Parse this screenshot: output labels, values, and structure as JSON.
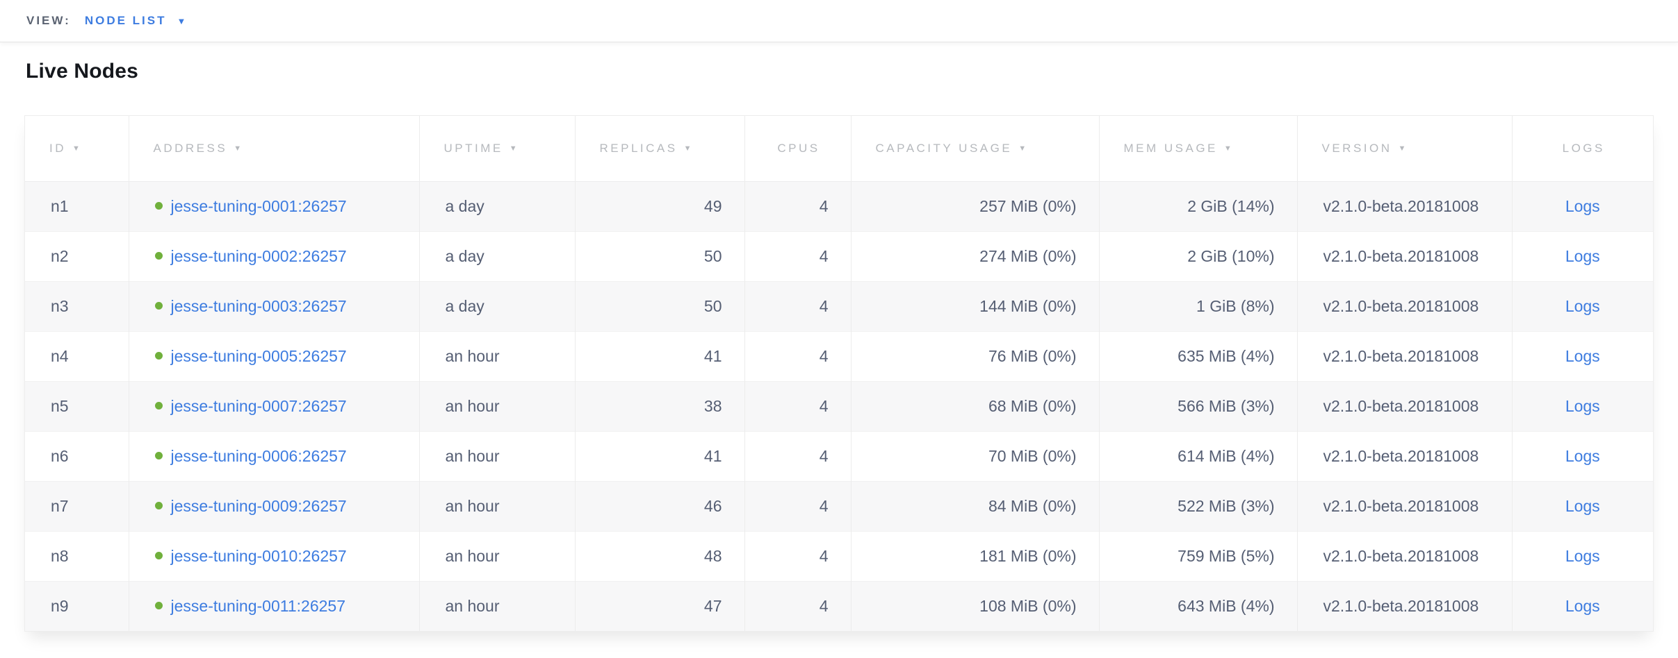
{
  "view_bar": {
    "label": "VIEW:",
    "selected_view": "NODE LIST"
  },
  "page_title": "Live Nodes",
  "icons": {
    "sort_descending": "▼",
    "dropdown_caret": "▼"
  },
  "colors": {
    "accent_blue": "#3d7ce0",
    "link_blue": "#3d7ce0",
    "healthy_green": "#70b03c",
    "header_text_gray": "#b6b9bd",
    "body_text": "#555e73",
    "row_stripe": "#f7f7f8"
  },
  "table": {
    "columns": [
      {
        "label": "ID",
        "sortable": true
      },
      {
        "label": "ADDRESS",
        "sortable": true
      },
      {
        "label": "UPTIME",
        "sortable": true
      },
      {
        "label": "REPLICAS",
        "sortable": true
      },
      {
        "label": "CPUS",
        "sortable": false
      },
      {
        "label": "CAPACITY USAGE",
        "sortable": true
      },
      {
        "label": "MEM USAGE",
        "sortable": true
      },
      {
        "label": "VERSION",
        "sortable": true
      },
      {
        "label": "LOGS",
        "sortable": false
      }
    ],
    "rows": [
      {
        "id": "n1",
        "status": "healthy",
        "address": "jesse-tuning-0001:26257",
        "uptime": "a day",
        "replicas": "49",
        "cpus": "4",
        "capacity_usage": "257 MiB (0%)",
        "mem_usage": "2 GiB (14%)",
        "version": "v2.1.0-beta.20181008",
        "logs_label": "Logs"
      },
      {
        "id": "n2",
        "status": "healthy",
        "address": "jesse-tuning-0002:26257",
        "uptime": "a day",
        "replicas": "50",
        "cpus": "4",
        "capacity_usage": "274 MiB (0%)",
        "mem_usage": "2 GiB (10%)",
        "version": "v2.1.0-beta.20181008",
        "logs_label": "Logs"
      },
      {
        "id": "n3",
        "status": "healthy",
        "address": "jesse-tuning-0003:26257",
        "uptime": "a day",
        "replicas": "50",
        "cpus": "4",
        "capacity_usage": "144 MiB (0%)",
        "mem_usage": "1 GiB (8%)",
        "version": "v2.1.0-beta.20181008",
        "logs_label": "Logs"
      },
      {
        "id": "n4",
        "status": "healthy",
        "address": "jesse-tuning-0005:26257",
        "uptime": "an hour",
        "replicas": "41",
        "cpus": "4",
        "capacity_usage": "76 MiB (0%)",
        "mem_usage": "635 MiB (4%)",
        "version": "v2.1.0-beta.20181008",
        "logs_label": "Logs"
      },
      {
        "id": "n5",
        "status": "healthy",
        "address": "jesse-tuning-0007:26257",
        "uptime": "an hour",
        "replicas": "38",
        "cpus": "4",
        "capacity_usage": "68 MiB (0%)",
        "mem_usage": "566 MiB (3%)",
        "version": "v2.1.0-beta.20181008",
        "logs_label": "Logs"
      },
      {
        "id": "n6",
        "status": "healthy",
        "address": "jesse-tuning-0006:26257",
        "uptime": "an hour",
        "replicas": "41",
        "cpus": "4",
        "capacity_usage": "70 MiB (0%)",
        "mem_usage": "614 MiB (4%)",
        "version": "v2.1.0-beta.20181008",
        "logs_label": "Logs"
      },
      {
        "id": "n7",
        "status": "healthy",
        "address": "jesse-tuning-0009:26257",
        "uptime": "an hour",
        "replicas": "46",
        "cpus": "4",
        "capacity_usage": "84 MiB (0%)",
        "mem_usage": "522 MiB (3%)",
        "version": "v2.1.0-beta.20181008",
        "logs_label": "Logs"
      },
      {
        "id": "n8",
        "status": "healthy",
        "address": "jesse-tuning-0010:26257",
        "uptime": "an hour",
        "replicas": "48",
        "cpus": "4",
        "capacity_usage": "181 MiB (0%)",
        "mem_usage": "759 MiB (5%)",
        "version": "v2.1.0-beta.20181008",
        "logs_label": "Logs"
      },
      {
        "id": "n9",
        "status": "healthy",
        "address": "jesse-tuning-0011:26257",
        "uptime": "an hour",
        "replicas": "47",
        "cpus": "4",
        "capacity_usage": "108 MiB (0%)",
        "mem_usage": "643 MiB (4%)",
        "version": "v2.1.0-beta.20181008",
        "logs_label": "Logs"
      }
    ]
  }
}
